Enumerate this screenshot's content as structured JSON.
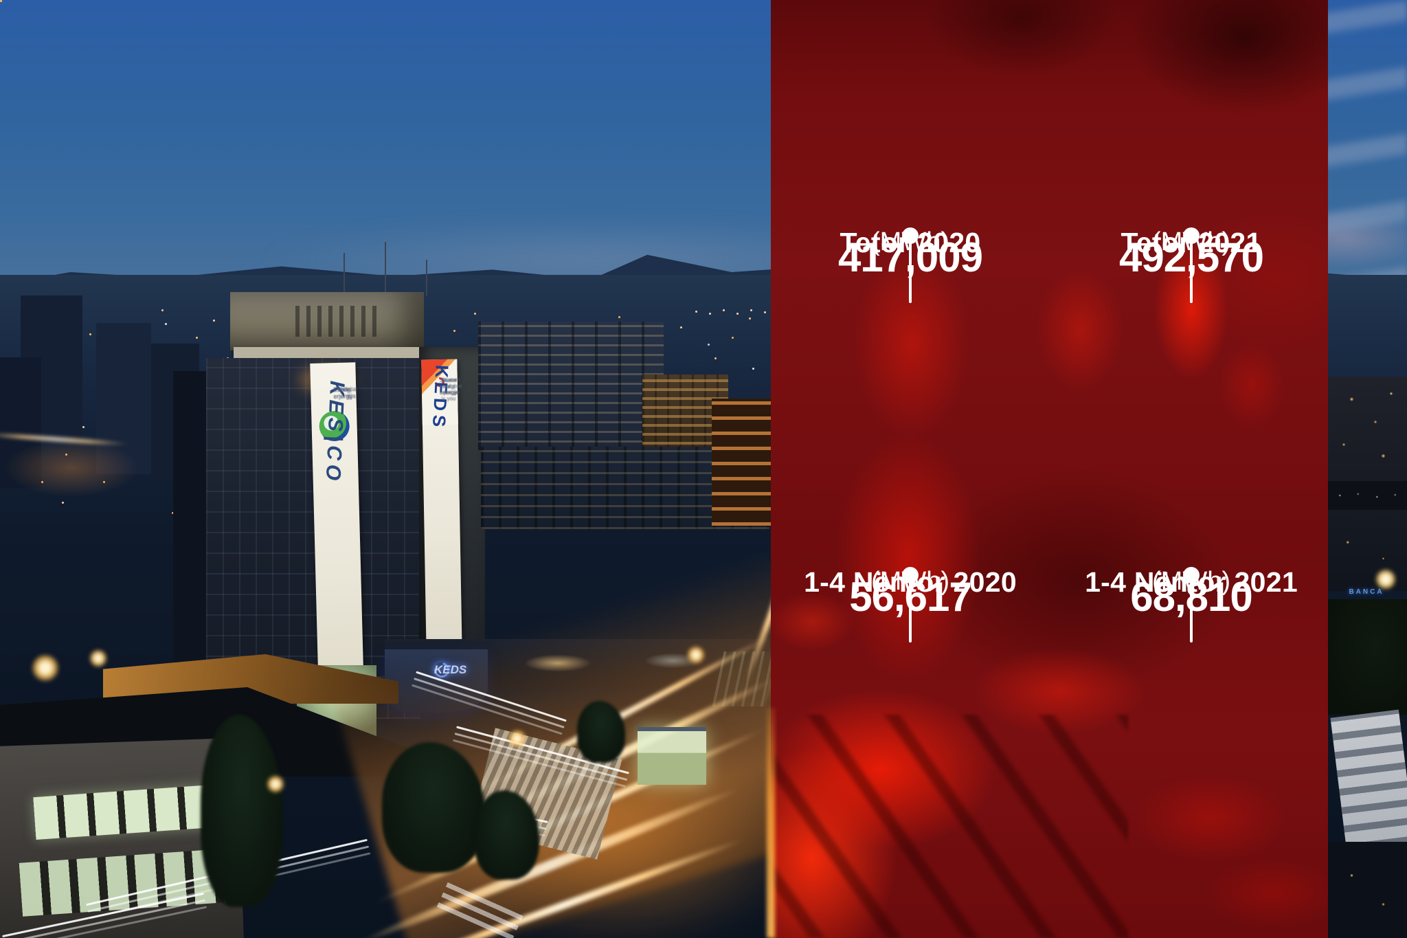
{
  "chart_data": {
    "type": "table",
    "unit": "MWh",
    "categories": [
      "Tetor 2020",
      "Tetor 2021",
      "1-4 Nëntor 2020",
      "1-4 Nëntor 2021"
    ],
    "values": [
      417009,
      492570,
      56617,
      68810
    ],
    "legend_position": "none",
    "grid": false
  },
  "callouts": [
    {
      "label": "Tetor 2020",
      "unit": "(MWh)",
      "value": "417,009"
    },
    {
      "label": "Tetor 2021",
      "unit": "(MWh)",
      "value": "492,570"
    },
    {
      "label": "1-4 Nëntor 2020",
      "unit": "(MWh)",
      "value": "56,617"
    },
    {
      "label": "1-4 Nëntor 2021",
      "unit": "(MWh)",
      "value": "68,810"
    }
  ],
  "photo": {
    "kesco_banner": {
      "brand": "KES|CO",
      "lines": [
        "Energjia jonë",
        "Vaša energija",
        "Your energy"
      ]
    },
    "keds_banner": {
      "brand": "KEDS",
      "lines": [
        "Burimi i energjisë jeni ju",
        "Vi ste izvor energije",
        "Source of energy is you"
      ]
    },
    "kesco_neon": "KES|CO",
    "keds_sign": "KEDS",
    "banca_sign": "BANCA"
  },
  "colors": {
    "overlay_red": "#7c1012",
    "overlay_bright_red": "#ff1e00",
    "text_white": "#ffffff",
    "sky_blue": "#33679f",
    "trail_orange": "#ffb45e",
    "neon_blue": "#5b93e0"
  }
}
